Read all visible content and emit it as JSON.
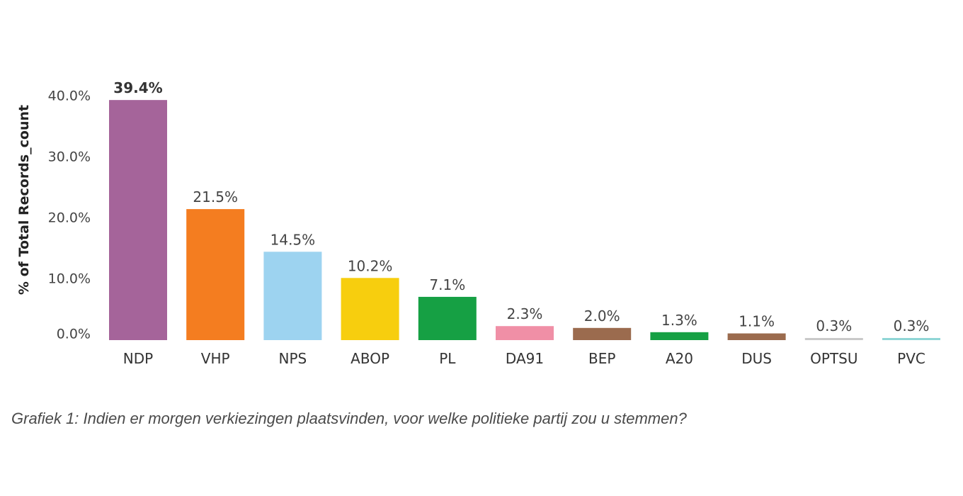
{
  "chart_data": {
    "type": "bar",
    "title": "",
    "xlabel": "",
    "ylabel": "% of Total Records_count",
    "ylim": [
      0,
      40
    ],
    "yticks": [
      "0.0%",
      "10.0%",
      "20.0%",
      "30.0%",
      "40.0%"
    ],
    "ytick_values": [
      0,
      10,
      20,
      30,
      40
    ],
    "grid": false,
    "categories": [
      "NDP",
      "VHP",
      "NPS",
      "ABOP",
      "PL",
      "DA91",
      "BEP",
      "A20",
      "DUS",
      "OPTSU",
      "PVC"
    ],
    "values": [
      39.4,
      21.5,
      14.5,
      10.2,
      7.1,
      2.3,
      2.0,
      1.3,
      1.1,
      0.3,
      0.3
    ],
    "data_labels": [
      "39.4%",
      "21.5%",
      "14.5%",
      "10.2%",
      "7.1%",
      "2.3%",
      "2.0%",
      "1.3%",
      "1.1%",
      "0.3%",
      "0.3%"
    ],
    "colors": [
      "#a5649a",
      "#f47d20",
      "#9dd3f0",
      "#f7ce0e",
      "#16a044",
      "#f08fa6",
      "#9b6b4e",
      "#16a044",
      "#9b6b4e",
      "#c9c9c9",
      "#8fd6d6"
    ]
  },
  "caption": "Grafiek 1: Indien er morgen verkiezingen plaatsvinden, voor welke politieke partij zou u stemmen?"
}
